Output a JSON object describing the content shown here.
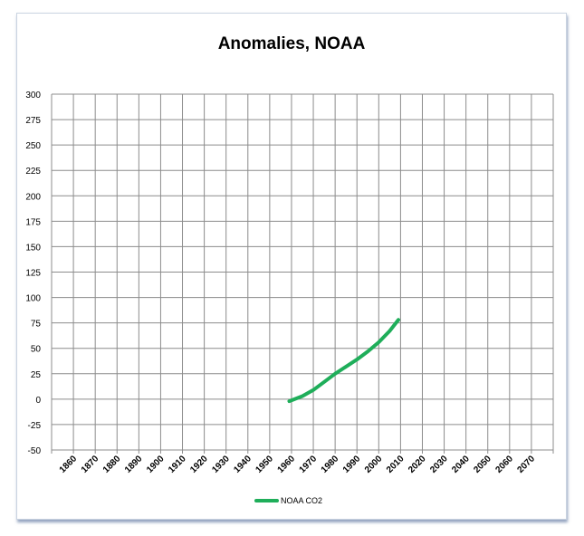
{
  "chart_data": {
    "type": "line",
    "title": "Anomalies, NOAA",
    "xlabel": "",
    "ylabel": "",
    "xlim": [
      1850,
      2080
    ],
    "ylim": [
      -50,
      300
    ],
    "x_ticks": [
      "1860",
      "1870",
      "1880",
      "1890",
      "1900",
      "1910",
      "1920",
      "1930",
      "1940",
      "1950",
      "1960",
      "1970",
      "1980",
      "1990",
      "2000",
      "2010",
      "2020",
      "2030",
      "2040",
      "2050",
      "2060",
      "2070"
    ],
    "y_ticks": [
      300,
      275,
      250,
      225,
      200,
      175,
      150,
      125,
      100,
      75,
      50,
      25,
      0,
      -25,
      -50
    ],
    "grid": true,
    "legend_position": "bottom",
    "series": [
      {
        "name": "NOAA CO2",
        "color": "#1fae5a",
        "x": [
          1959,
          1965,
          1970,
          1975,
          1980,
          1985,
          1990,
          1995,
          2000,
          2005,
          2009
        ],
        "values": [
          -2,
          3,
          9,
          17,
          25,
          32,
          39,
          47,
          56,
          67,
          78
        ]
      }
    ]
  }
}
